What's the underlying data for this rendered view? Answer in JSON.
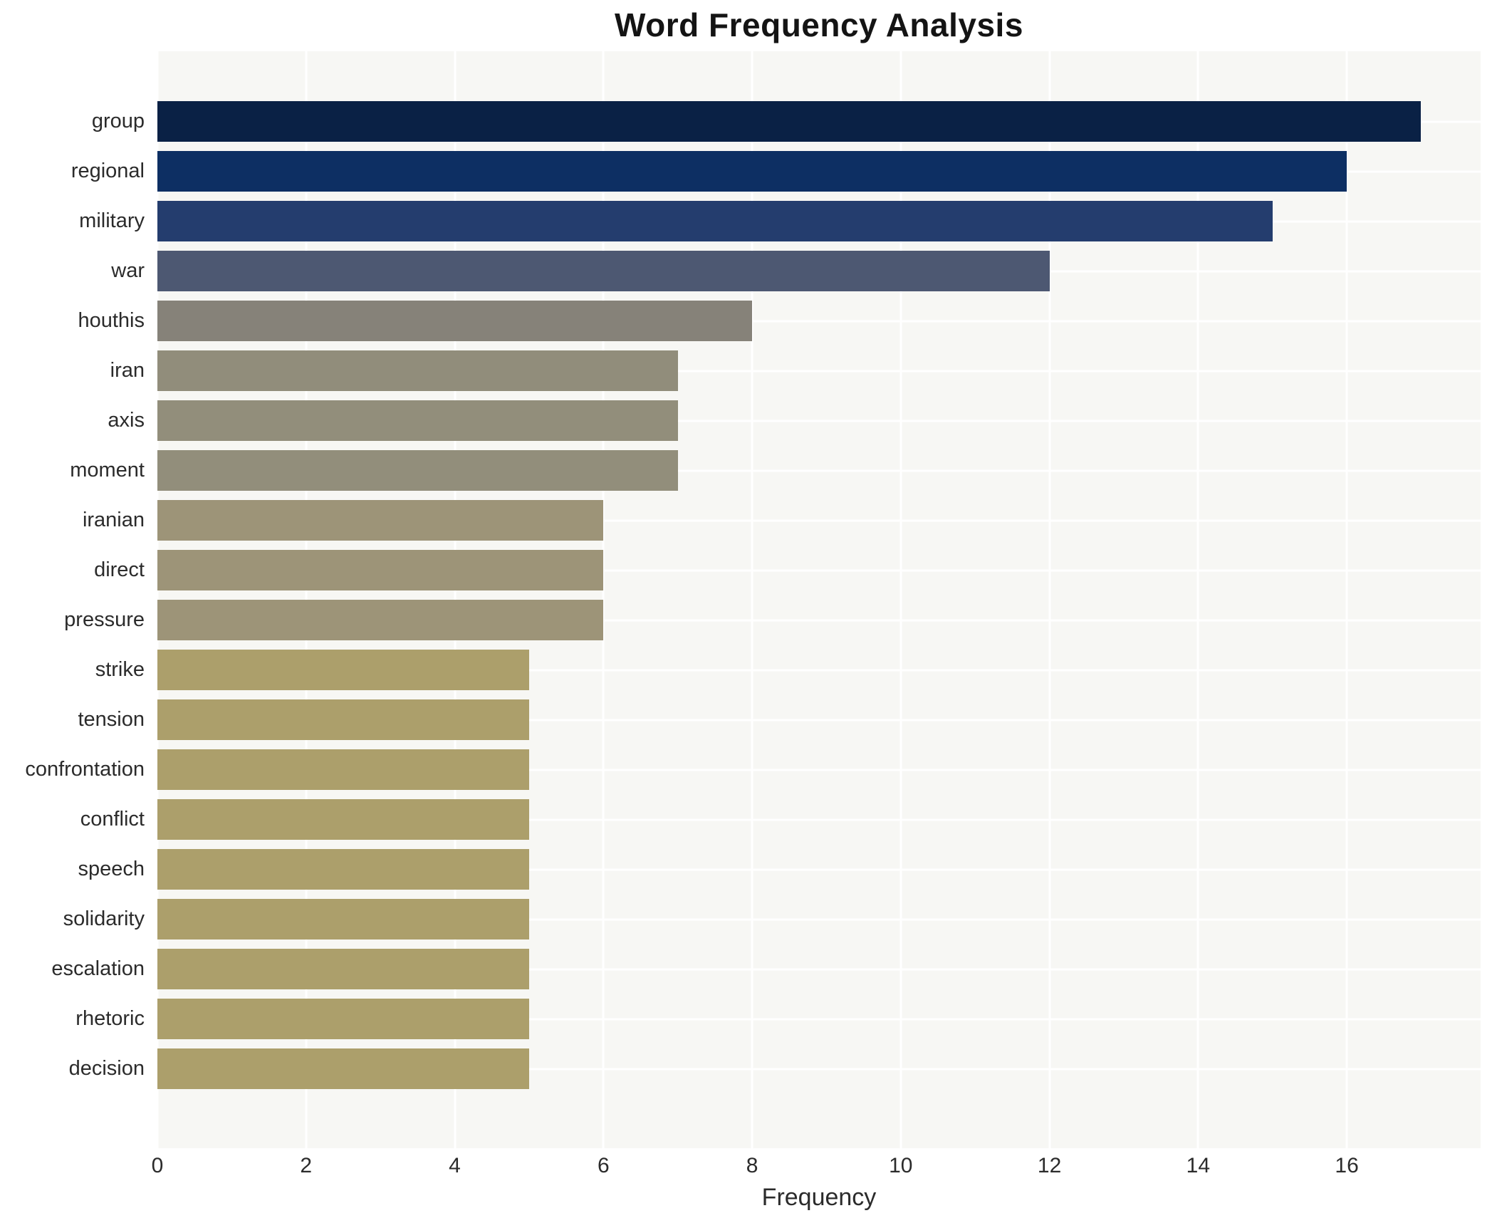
{
  "chart_data": {
    "type": "bar",
    "orientation": "horizontal",
    "title": "Word Frequency Analysis",
    "xlabel": "Frequency",
    "ylabel": "",
    "categories": [
      "group",
      "regional",
      "military",
      "war",
      "houthis",
      "iran",
      "axis",
      "moment",
      "iranian",
      "direct",
      "pressure",
      "strike",
      "tension",
      "confrontation",
      "conflict",
      "speech",
      "solidarity",
      "escalation",
      "rhetoric",
      "decision"
    ],
    "values": [
      17,
      16,
      15,
      12,
      8,
      7,
      7,
      7,
      6,
      6,
      6,
      5,
      5,
      5,
      5,
      5,
      5,
      5,
      5,
      5
    ],
    "bar_colors": [
      "#0a2145",
      "#0d2f63",
      "#243d6e",
      "#4d5872",
      "#868279",
      "#918d7b",
      "#928e7b",
      "#928e7b",
      "#9d9478",
      "#9d9478",
      "#9d9478",
      "#ac9f6b",
      "#ac9f6b",
      "#ac9f6b",
      "#ac9f6b",
      "#ac9f6b",
      "#ac9f6b",
      "#ac9f6b",
      "#ac9f6b",
      "#ac9f6b"
    ],
    "xticks": [
      0,
      2,
      4,
      6,
      8,
      10,
      12,
      14,
      16
    ],
    "xlim": [
      0,
      17.8
    ],
    "grid": true,
    "legend_position": "none",
    "plot_bg_color": "#f7f7f4",
    "grid_color": "#ffffff",
    "title_color": "#141414",
    "tick_label_color": "#2b2b2b"
  }
}
